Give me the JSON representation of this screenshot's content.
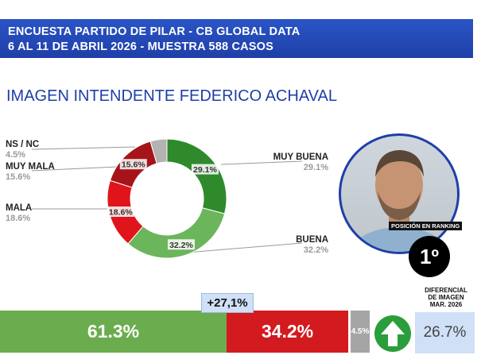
{
  "header": {
    "line1": "ENCUESTA PARTIDO DE PILAR - CB GLOBAL DATA",
    "line2": "6 AL 11 DE ABRIL 2026 - MUESTRA 588 CASOS"
  },
  "title": "IMAGEN INTENDENTE  FEDERICO ACHAVAL",
  "chart_data": {
    "type": "pie",
    "donut": true,
    "slices": [
      {
        "label": "MUY BUENA",
        "value": 29.1,
        "display": "29.1%",
        "color": "#2f8a2c"
      },
      {
        "label": "BUENA",
        "value": 32.2,
        "display": "32.2%",
        "color": "#6bb55a"
      },
      {
        "label": "MALA",
        "value": 18.6,
        "display": "18.6%",
        "color": "#e0151b"
      },
      {
        "label": "MUY MALA",
        "value": 15.6,
        "display": "15.6%",
        "color": "#a6141a"
      },
      {
        "label": "NS / NC",
        "value": 4.5,
        "display": "4.5%",
        "color": "#b3b3b3"
      }
    ]
  },
  "legend_labels": {
    "muy_buena": {
      "label": "MUY BUENA",
      "pct": "29.1%"
    },
    "buena": {
      "label": "BUENA",
      "pct": "32.2%"
    },
    "mala": {
      "label": "MALA",
      "pct": "18.6%"
    },
    "muy_mala": {
      "label": "MUY MALA",
      "pct": "15.6%"
    },
    "ns_nc": {
      "label": "NS / NC",
      "pct": "4.5%"
    }
  },
  "ranking": {
    "label": "POSICIÓN EN RANKING",
    "value": "1º"
  },
  "bottom_bar": {
    "positive": {
      "value": 61.3,
      "display": "61.3%",
      "color": "#6bad4e"
    },
    "negative": {
      "value": 34.2,
      "display": "34.2%",
      "color": "#d21a1f"
    },
    "ns": {
      "value": 4.5,
      "display": "4.5%",
      "color": "#a5a5a5"
    },
    "difference": "+27,1%"
  },
  "differential": {
    "title_line1": "DIFERENCIAL",
    "title_line2": "DE IMAGEN",
    "title_line3": "MAR. 2026",
    "value": "26.7%"
  },
  "icons": {
    "arrow": "up-arrow-icon",
    "photo": "person-photo"
  }
}
